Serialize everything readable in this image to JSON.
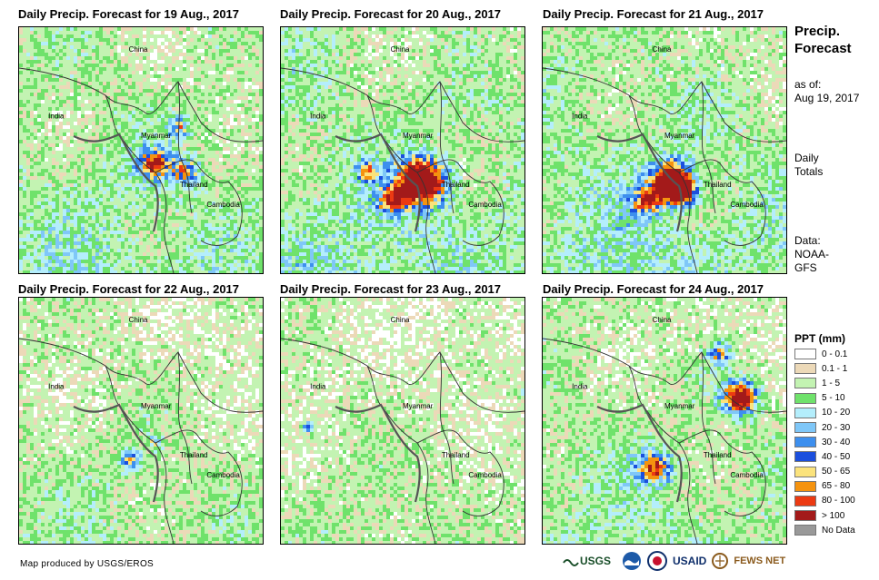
{
  "panels": [
    {
      "title": "Daily Precip. Forecast for 19 Aug., 2017",
      "day": 0
    },
    {
      "title": "Daily Precip. Forecast for 20 Aug., 2017",
      "day": 1
    },
    {
      "title": "Daily Precip. Forecast for 21 Aug., 2017",
      "day": 2
    },
    {
      "title": "Daily Precip. Forecast for 22 Aug., 2017",
      "day": 3
    },
    {
      "title": "Daily Precip. Forecast for 23 Aug., 2017",
      "day": 4
    },
    {
      "title": "Daily Precip. Forecast for 24 Aug., 2017",
      "day": 5
    }
  ],
  "map_labels": {
    "china": "China",
    "india": "India",
    "myanmar": "Myanmar",
    "thailand": "Thailand",
    "cambodia": "Cambodia"
  },
  "side": {
    "title_line1": "Precip.",
    "title_line2": "Forecast",
    "asof_line1": "as of:",
    "asof_line2": "Aug 19, 2017",
    "daily_line1": "Daily",
    "daily_line2": "Totals",
    "data_line1": "Data:",
    "data_line2": "NOAA-",
    "data_line3": "GFS"
  },
  "legend": {
    "title": "PPT (mm)",
    "items": [
      {
        "label": "0 - 0.1",
        "color": "#ffffff"
      },
      {
        "label": "0.1 - 1",
        "color": "#ecd9b8"
      },
      {
        "label": "1 - 5",
        "color": "#c3f3b2"
      },
      {
        "label": "5 - 10",
        "color": "#6fe26b"
      },
      {
        "label": "10 - 20",
        "color": "#b4eefc"
      },
      {
        "label": "20 - 30",
        "color": "#7fc7f8"
      },
      {
        "label": "30 - 40",
        "color": "#3d8fee"
      },
      {
        "label": "40 - 50",
        "color": "#1b4fdd"
      },
      {
        "label": "50 - 65",
        "color": "#fbe37c"
      },
      {
        "label": "65 - 80",
        "color": "#f5930f"
      },
      {
        "label": "80 - 100",
        "color": "#ec3a12"
      },
      {
        "label": "> 100",
        "color": "#a31a1a"
      },
      {
        "label": "No Data",
        "color": "#999999"
      }
    ]
  },
  "credit": "Map produced by USGS/EROS",
  "logos": {
    "usgs": "USGS",
    "usaid": "USAID",
    "fewsnet": "FEWS NET"
  }
}
